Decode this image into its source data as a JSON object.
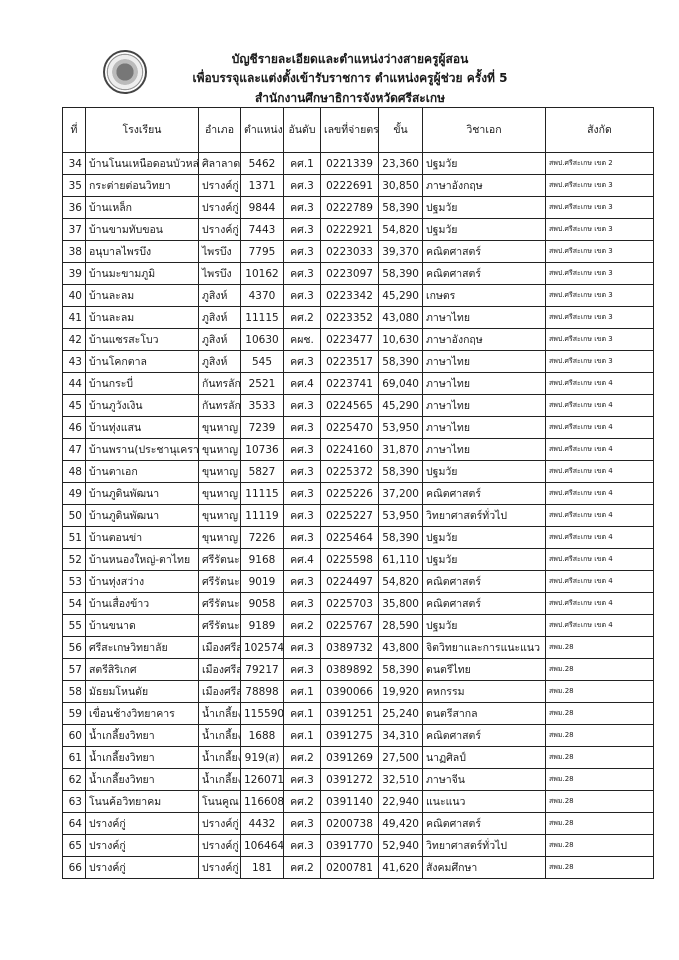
{
  "header": {
    "line1": "บัญชีรายละเอียดและตำแหน่งว่างสายครูผู้สอน",
    "line2": "เพื่อบรรจุและแต่งตั้งเข้ารับราชการ ตำแหน่งครูผู้ช่วย ครั้งที่ 5",
    "line3": "สำนักงานศึกษาธิการจังหวัดศรีสะเกษ",
    "seal_icon": "government-seal"
  },
  "columns": [
    "ที่",
    "โรงเรียน",
    "อำเภอ",
    "ตำแหน่งเลขที่",
    "อันดับ",
    "เลขที่จ่ายตรง",
    "ขั้น",
    "วิชาเอก",
    "สังกัด"
  ],
  "rows": [
    [
      "34",
      "บ้านโนนเหนือดอนบัวหล่ม",
      "ศิลาลาด",
      "5462",
      "คศ.1",
      "0221339",
      "23,360",
      "ปฐมวัย",
      "สพป.ศรีสะเกษ เขต 2"
    ],
    [
      "35",
      "กระต่ายต่อนวิทยา",
      "ปรางค์กู่",
      "1371",
      "คศ.3",
      "0222691",
      "30,850",
      "ภาษาอังกฤษ",
      "สพป.ศรีสะเกษ เขต 3"
    ],
    [
      "36",
      "บ้านเหล็ก",
      "ปรางค์กู่",
      "9844",
      "คศ.3",
      "0222789",
      "58,390",
      "ปฐมวัย",
      "สพป.ศรีสะเกษ เขต 3"
    ],
    [
      "37",
      "บ้านขามทับขอน",
      "ปรางค์กู่",
      "7443",
      "คศ.3",
      "0222921",
      "54,820",
      "ปฐมวัย",
      "สพป.ศรีสะเกษ เขต 3"
    ],
    [
      "38",
      "อนุบาลไพรบึง",
      "ไพรบึง",
      "7795",
      "คศ.3",
      "0223033",
      "39,370",
      "คณิตศาสตร์",
      "สพป.ศรีสะเกษ เขต 3"
    ],
    [
      "39",
      "บ้านมะขามภูมิ",
      "ไพรบึง",
      "10162",
      "คศ.3",
      "0223097",
      "58,390",
      "คณิตศาสตร์",
      "สพป.ศรีสะเกษ เขต 3"
    ],
    [
      "40",
      "บ้านละลม",
      "ภูสิงห์",
      "4370",
      "คศ.3",
      "0223342",
      "45,290",
      "เกษตร",
      "สพป.ศรีสะเกษ เขต 3"
    ],
    [
      "41",
      "บ้านละลม",
      "ภูสิงห์",
      "11115",
      "คศ.2",
      "0223352",
      "43,080",
      "ภาษาไทย",
      "สพป.ศรีสะเกษ เขต 3"
    ],
    [
      "42",
      "บ้านแซรสะโบว",
      "ภูสิงห์",
      "10630",
      "คผช.",
      "0223477",
      "10,630",
      "ภาษาอังกฤษ",
      "สพป.ศรีสะเกษ เขต 3"
    ],
    [
      "43",
      "บ้านโคกตาล",
      "ภูสิงห์",
      "545",
      "คศ.3",
      "0223517",
      "58,390",
      "ภาษาไทย",
      "สพป.ศรีสะเกษ เขต 3"
    ],
    [
      "44",
      "บ้านกระบี่",
      "กันทรลักษ์",
      "2521",
      "คศ.4",
      "0223741",
      "69,040",
      "ภาษาไทย",
      "สพป.ศรีสะเกษ เขต 4"
    ],
    [
      "45",
      "บ้านภูวังเงิน",
      "กันทรลักษ์",
      "3533",
      "คศ.3",
      "0224565",
      "45,290",
      "ภาษาไทย",
      "สพป.ศรีสะเกษ เขต 4"
    ],
    [
      "46",
      "บ้านทุ่งแสน",
      "ขุนหาญ",
      "7239",
      "คศ.3",
      "0225470",
      "53,950",
      "ภาษาไทย",
      "สพป.ศรีสะเกษ เขต 4"
    ],
    [
      "47",
      "บ้านพราน(ประชานุเคราะห์)",
      "ขุนหาญ",
      "10736",
      "คศ.3",
      "0224160",
      "31,870",
      "ภาษาไทย",
      "สพป.ศรีสะเกษ เขต 4"
    ],
    [
      "48",
      "บ้านตาเอก",
      "ขุนหาญ",
      "5827",
      "คศ.3",
      "0225372",
      "58,390",
      "ปฐมวัย",
      "สพป.ศรีสะเกษ เขต 4"
    ],
    [
      "49",
      "บ้านภูดินพัฒนา",
      "ขุนหาญ",
      "11115",
      "คศ.3",
      "0225226",
      "37,200",
      "คณิตศาสตร์",
      "สพป.ศรีสะเกษ เขต 4"
    ],
    [
      "50",
      "บ้านภูดินพัฒนา",
      "ขุนหาญ",
      "11119",
      "คศ.3",
      "0225227",
      "53,950",
      "วิทยาศาสตร์ทั่วไป",
      "สพป.ศรีสะเกษ เขต 4"
    ],
    [
      "51",
      "บ้านตอนข่า",
      "ขุนหาญ",
      "7226",
      "คศ.3",
      "0225464",
      "58,390",
      "ปฐมวัย",
      "สพป.ศรีสะเกษ เขต 4"
    ],
    [
      "52",
      "บ้านหนองใหญ่-ตาไทย",
      "ศรีรัตนะ",
      "9168",
      "คศ.4",
      "0225598",
      "61,110",
      "ปฐมวัย",
      "สพป.ศรีสะเกษ เขต 4"
    ],
    [
      "53",
      "บ้านทุ่งสว่าง",
      "ศรีรัตนะ",
      "9019",
      "คศ.3",
      "0224497",
      "54,820",
      "คณิตศาสตร์",
      "สพป.ศรีสะเกษ เขต 4"
    ],
    [
      "54",
      "บ้านเสื่องข้าว",
      "ศรีรัตนะ",
      "9058",
      "คศ.3",
      "0225703",
      "35,800",
      "คณิตศาสตร์",
      "สพป.ศรีสะเกษ เขต 4"
    ],
    [
      "55",
      "บ้านขนาด",
      "ศรีรัตนะ",
      "9189",
      "คศ.2",
      "0225767",
      "28,590",
      "ปฐมวัย",
      "สพป.ศรีสะเกษ เขต 4"
    ],
    [
      "56",
      "ศรีสะเกษวิทยาลัย",
      "เมืองศรีสะเกษ",
      "102574",
      "คศ.3",
      "0389732",
      "43,800",
      "จิตวิทยาและการแนะแนว",
      "สพม.28"
    ],
    [
      "57",
      "สตรีสิริเกศ",
      "เมืองศรีสะเกษ",
      "79217",
      "คศ.3",
      "0389892",
      "58,390",
      "ดนตรีไทย",
      "สพม.28"
    ],
    [
      "58",
      "มัธยมโหนดัย",
      "เมืองศรีสะเกษ",
      "78898",
      "คศ.1",
      "0390066",
      "19,920",
      "คหกรรม",
      "สพม.28"
    ],
    [
      "59",
      "เขื่อนช้างวิทยาคาร",
      "น้ำเกลี้ยง",
      "115590",
      "คศ.1",
      "0391251",
      "25,240",
      "ดนตรีสากล",
      "สพม.28"
    ],
    [
      "60",
      "น้ำเกลี้ยงวิทยา",
      "น้ำเกลี้ยง",
      "1688",
      "คศ.1",
      "0391275",
      "34,310",
      "คณิตศาสตร์",
      "สพม.28"
    ],
    [
      "61",
      "น้ำเกลี้ยงวิทยา",
      "น้ำเกลี้ยง",
      "919(ส)",
      "คศ.2",
      "0391269",
      "27,500",
      "นาฏศิลป์",
      "สพม.28"
    ],
    [
      "62",
      "น้ำเกลี้ยงวิทยา",
      "น้ำเกลี้ยง",
      "126071",
      "คศ.3",
      "0391272",
      "32,510",
      "ภาษาจีน",
      "สพม.28"
    ],
    [
      "63",
      "โนนค้อวิทยาคม",
      "โนนคูณ",
      "116608",
      "คศ.2",
      "0391140",
      "22,940",
      "แนะแนว",
      "สพม.28"
    ],
    [
      "64",
      "ปรางค์กู่",
      "ปรางค์กู่",
      "4432",
      "คศ.3",
      "0200738",
      "49,420",
      "คณิตศาสตร์",
      "สพม.28"
    ],
    [
      "65",
      "ปรางค์กู่",
      "ปรางค์กู่",
      "106464",
      "คศ.3",
      "0391770",
      "52,940",
      "วิทยาศาสตร์ทั่วไป",
      "สพม.28"
    ],
    [
      "66",
      "ปรางค์กู่",
      "ปรางค์กู่",
      "181",
      "คศ.2",
      "0200781",
      "41,620",
      "สังคมศึกษา",
      "สพม.28"
    ]
  ]
}
